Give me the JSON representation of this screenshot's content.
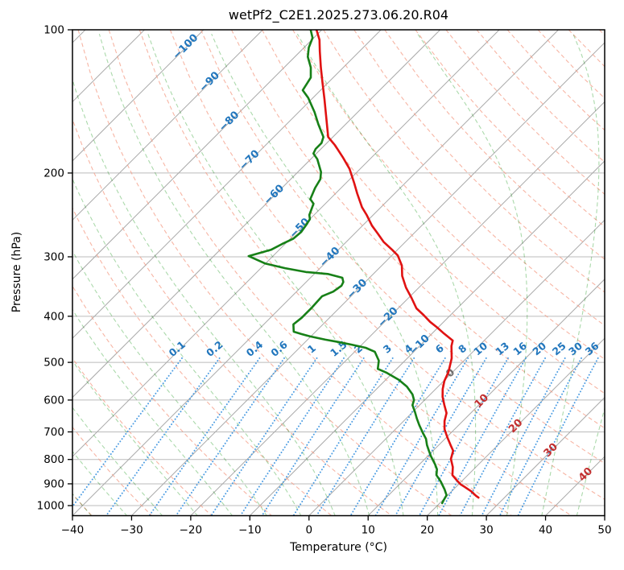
{
  "chart_data": {
    "type": "line",
    "variant": "skew-t-log-p-sounding",
    "title": "wetPf2_C2E1.2025.273.06.20.R04",
    "xlabel": "Temperature (°C)",
    "ylabel": "Pressure (hPa)",
    "xlim": [
      -40,
      50
    ],
    "x_ticks": [
      -40,
      -30,
      -20,
      -10,
      0,
      10,
      20,
      30,
      40,
      50
    ],
    "pressure_ticks": [
      100,
      200,
      300,
      400,
      500,
      600,
      700,
      800,
      900,
      1000
    ],
    "p_top": 100,
    "p_bottom": 1050,
    "skew_deg": 45,
    "grid": true,
    "colors": {
      "grid": "#bbbbbb",
      "spine": "#000000",
      "temperature": "#e01212",
      "dewpoint": "#178017",
      "isotherm": "#a9a9a9",
      "dry_adiabat": "#f49c86",
      "moist_adiabat": "#96cf96",
      "mixing_ratio": "#4b9ce2",
      "label_negative": "#2176bd",
      "label_zero": "#6e6e6e",
      "label_positive": "#c22f2f"
    },
    "background": {
      "isotherms": {
        "start": -120,
        "end": 50,
        "step": 10
      },
      "isotherm_labels": [
        {
          "t": -100,
          "p": 108
        },
        {
          "t": -90,
          "p": 128
        },
        {
          "t": -80,
          "p": 155
        },
        {
          "t": -70,
          "p": 187
        },
        {
          "t": -60,
          "p": 221
        },
        {
          "t": -50,
          "p": 260
        },
        {
          "t": -40,
          "p": 299
        },
        {
          "t": -30,
          "p": 349
        },
        {
          "t": -20,
          "p": 400
        },
        {
          "t": -10,
          "p": 457
        },
        {
          "t": 0,
          "p": 524
        },
        {
          "t": 10,
          "p": 600
        },
        {
          "t": 20,
          "p": 677
        },
        {
          "t": 30,
          "p": 761
        },
        {
          "t": 40,
          "p": 856
        }
      ],
      "dry_adiabats": {
        "theta_start": -60,
        "theta_end": 190,
        "step": 10
      },
      "moist_adiabats": {
        "t0_start": -52,
        "t0_end": 50,
        "step": 6
      },
      "mixing_ratio_lines": {
        "values": [
          0.1,
          0.2,
          0.4,
          0.6,
          1,
          1.5,
          2,
          3,
          4,
          6,
          8,
          10,
          13,
          16,
          20,
          25,
          30,
          36
        ],
        "label_pressure": 478,
        "p_range": [
          490,
          1050
        ]
      }
    },
    "series": [
      {
        "name": "temperature",
        "units": [
          "degC",
          "hPa"
        ],
        "points": [
          [
            -80.9,
            100
          ],
          [
            -78.7,
            105
          ],
          [
            -76.7,
            111
          ],
          [
            -73.8,
            120
          ],
          [
            -71,
            129
          ],
          [
            -67.8,
            140
          ],
          [
            -64.9,
            151
          ],
          [
            -60.8,
            168
          ],
          [
            -58.2,
            175
          ],
          [
            -55,
            185
          ],
          [
            -51.8,
            196
          ],
          [
            -48.6,
            210
          ],
          [
            -46.3,
            221
          ],
          [
            -43.2,
            236
          ],
          [
            -41.1,
            245
          ],
          [
            -38.4,
            258
          ],
          [
            -36.1,
            268
          ],
          [
            -33.7,
            279
          ],
          [
            -30.9,
            290
          ],
          [
            -29,
            298
          ],
          [
            -26.6,
            313
          ],
          [
            -24.8,
            329
          ],
          [
            -22.2,
            348
          ],
          [
            -19.5,
            366
          ],
          [
            -16.9,
            385
          ],
          [
            -14.5,
            398
          ],
          [
            -12.3,
            411
          ],
          [
            -10.2,
            422
          ],
          [
            -8.3,
            433
          ],
          [
            -5.3,
            450
          ],
          [
            -4.6,
            462
          ],
          [
            -2.5,
            490
          ],
          [
            -0.7,
            524
          ],
          [
            0.1,
            547
          ],
          [
            1.2,
            569
          ],
          [
            2.5,
            591
          ],
          [
            4.2,
            615
          ],
          [
            5.9,
            639
          ],
          [
            6.9,
            664
          ],
          [
            8.3,
            691
          ],
          [
            10.1,
            718
          ],
          [
            12,
            746
          ],
          [
            13.4,
            767
          ],
          [
            14.4,
            798
          ],
          [
            16.1,
            830
          ],
          [
            17.4,
            863
          ],
          [
            19.1,
            886
          ],
          [
            20.4,
            903
          ],
          [
            21.5,
            914
          ],
          [
            23.2,
            932
          ],
          [
            24.9,
            954
          ],
          [
            25.6,
            962
          ]
        ]
      },
      {
        "name": "dewpoint",
        "units": [
          "degC",
          "hPa"
        ],
        "points": [
          [
            -81.9,
            100
          ],
          [
            -80.2,
            104
          ],
          [
            -79.2,
            109
          ],
          [
            -77.8,
            114
          ],
          [
            -75.5,
            120
          ],
          [
            -73.8,
            126
          ],
          [
            -73,
            134
          ],
          [
            -70.8,
            139
          ],
          [
            -67.3,
            149
          ],
          [
            -64.6,
            158
          ],
          [
            -61.6,
            168
          ],
          [
            -60.9,
            173
          ],
          [
            -60.9,
            178
          ],
          [
            -60.5,
            182
          ],
          [
            -58.9,
            187
          ],
          [
            -56.1,
            199
          ],
          [
            -55,
            206
          ],
          [
            -54.4,
            215
          ],
          [
            -53.3,
            227
          ],
          [
            -52,
            232
          ],
          [
            -50.8,
            245
          ],
          [
            -50,
            250
          ],
          [
            -49.6,
            258
          ],
          [
            -49.3,
            266
          ],
          [
            -49.5,
            275
          ],
          [
            -50.5,
            282
          ],
          [
            -51.4,
            290
          ],
          [
            -54.1,
            299
          ],
          [
            -50,
            310
          ],
          [
            -45.9,
            317
          ],
          [
            -41.7,
            323
          ],
          [
            -37.7,
            326
          ],
          [
            -34.6,
            332
          ],
          [
            -33.7,
            339
          ],
          [
            -33.4,
            345
          ],
          [
            -33.8,
            355
          ],
          [
            -34.9,
            363
          ],
          [
            -34.7,
            384
          ],
          [
            -34.7,
            403
          ],
          [
            -35,
            416
          ],
          [
            -33.7,
            431
          ],
          [
            -32,
            436
          ],
          [
            -30.1,
            441
          ],
          [
            -27,
            448
          ],
          [
            -24.4,
            453
          ],
          [
            -21.7,
            459
          ],
          [
            -18.8,
            466
          ],
          [
            -16.6,
            475
          ],
          [
            -14.4,
            496
          ],
          [
            -13.2,
            516
          ],
          [
            -11,
            526
          ],
          [
            -7.8,
            544
          ],
          [
            -5.3,
            562
          ],
          [
            -3,
            584
          ],
          [
            -1.8,
            600
          ],
          [
            -1.2,
            615
          ],
          [
            0.4,
            636
          ],
          [
            1.8,
            656
          ],
          [
            3.3,
            677
          ],
          [
            5.3,
            704
          ],
          [
            6.8,
            724
          ],
          [
            8,
            746
          ],
          [
            9.3,
            767
          ],
          [
            10.6,
            788
          ],
          [
            12.7,
            820
          ],
          [
            13.8,
            839
          ],
          [
            14.7,
            863
          ],
          [
            16.5,
            890
          ],
          [
            18.5,
            925
          ],
          [
            19.8,
            951
          ],
          [
            20.2,
            977
          ],
          [
            20.4,
            988
          ]
        ]
      }
    ]
  }
}
